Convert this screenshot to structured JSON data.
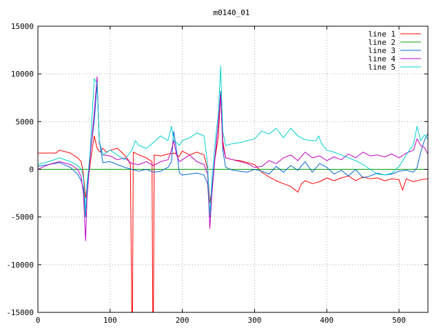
{
  "chart_data": {
    "type": "line",
    "title": "m0140_01",
    "xlabel": "",
    "ylabel": "",
    "xlim": [
      0,
      540
    ],
    "ylim": [
      -15000,
      15000
    ],
    "x_ticks": [
      0,
      100,
      200,
      300,
      400,
      500
    ],
    "y_ticks": [
      -15000,
      -10000,
      -5000,
      0,
      5000,
      10000,
      15000
    ],
    "grid": true,
    "legend_position": "top-right",
    "series": [
      {
        "name": "line 1",
        "color": "#ff0000",
        "x": [
          0,
          25,
          30,
          45,
          55,
          60,
          63,
          66,
          70,
          74,
          78,
          82,
          86,
          90,
          95,
          100,
          110,
          120,
          125,
          128,
          130,
          131,
          132,
          140,
          150,
          158,
          159,
          160,
          161,
          170,
          180,
          190,
          195,
          200,
          210,
          220,
          230,
          235,
          238,
          241,
          245,
          250,
          253,
          256,
          260,
          270,
          280,
          290,
          300,
          310,
          320,
          330,
          340,
          350,
          360,
          365,
          370,
          380,
          390,
          400,
          410,
          420,
          430,
          440,
          450,
          460,
          470,
          480,
          490,
          500,
          505,
          510,
          520,
          530,
          540
        ],
        "values": [
          1700,
          1700,
          2000,
          1700,
          1200,
          800,
          -500,
          -3000,
          -800,
          1500,
          3500,
          2200,
          1800,
          2200,
          1800,
          2000,
          2200,
          1500,
          1000,
          500,
          -15000,
          -15000,
          1800,
          1500,
          1200,
          800,
          -15000,
          -15000,
          1500,
          1400,
          1600,
          1700,
          1300,
          1900,
          1500,
          1800,
          1500,
          0,
          -3500,
          -2000,
          1000,
          3500,
          8000,
          3000,
          1200,
          1000,
          900,
          700,
          500,
          -300,
          -800,
          -1200,
          -1500,
          -1800,
          -2400,
          -1500,
          -1200,
          -1500,
          -1300,
          -900,
          -1200,
          -900,
          -700,
          -1200,
          -800,
          -1000,
          -900,
          -1200,
          -1000,
          -1100,
          -2200,
          -1000,
          -1300,
          -1100,
          -1000
        ]
      },
      {
        "name": "line 2",
        "color": "#00a000",
        "x": [
          0,
          540
        ],
        "values": [
          0,
          0
        ]
      },
      {
        "name": "line 3",
        "color": "#0066cc",
        "x": [
          0,
          15,
          30,
          45,
          55,
          60,
          63,
          66,
          68,
          72,
          78,
          82,
          85,
          90,
          100,
          110,
          120,
          130,
          140,
          150,
          160,
          170,
          180,
          185,
          188,
          192,
          196,
          200,
          210,
          220,
          230,
          235,
          238,
          241,
          245,
          250,
          253,
          256,
          260,
          270,
          280,
          290,
          300,
          310,
          320,
          330,
          340,
          350,
          360,
          370,
          380,
          390,
          400,
          410,
          420,
          430,
          440,
          450,
          460,
          470,
          480,
          490,
          500,
          510,
          520,
          525,
          530,
          535,
          540
        ],
        "values": [
          300,
          500,
          700,
          200,
          -500,
          -1200,
          -2000,
          -5000,
          -2000,
          1500,
          5000,
          9000,
          3000,
          700,
          800,
          500,
          200,
          0,
          -200,
          0,
          -300,
          -200,
          200,
          800,
          4000,
          2000,
          -400,
          -600,
          -500,
          -400,
          -600,
          -1500,
          -5000,
          -2000,
          1200,
          5000,
          8200,
          2000,
          200,
          -100,
          -200,
          -300,
          0,
          -200,
          -500,
          300,
          -300,
          400,
          -100,
          800,
          -300,
          600,
          200,
          -500,
          -100,
          -700,
          0,
          -900,
          -700,
          -400,
          -600,
          -500,
          -200,
          -100,
          -300,
          200,
          1800,
          3000,
          3800
        ]
      },
      {
        "name": "line 4",
        "color": "#c000c0",
        "x": [
          0,
          15,
          30,
          45,
          55,
          60,
          63,
          66,
          68,
          72,
          78,
          82,
          85,
          90,
          100,
          110,
          120,
          130,
          140,
          150,
          160,
          170,
          180,
          185,
          188,
          192,
          196,
          200,
          210,
          220,
          230,
          235,
          238,
          241,
          245,
          250,
          253,
          256,
          260,
          270,
          280,
          290,
          300,
          310,
          320,
          330,
          340,
          350,
          360,
          370,
          380,
          390,
          400,
          410,
          420,
          430,
          440,
          450,
          460,
          470,
          480,
          490,
          500,
          510,
          520,
          525,
          530,
          535,
          540
        ],
        "values": [
          0,
          500,
          800,
          500,
          0,
          -800,
          -2500,
          -7500,
          -3000,
          1000,
          6000,
          9700,
          2800,
          1500,
          1400,
          1000,
          1200,
          600,
          500,
          800,
          400,
          800,
          1000,
          2000,
          3000,
          1500,
          800,
          1000,
          1500,
          800,
          500,
          -500,
          -6200,
          -2500,
          1000,
          5000,
          7800,
          2500,
          1200,
          1000,
          800,
          600,
          200,
          300,
          900,
          600,
          1200,
          1500,
          900,
          1800,
          1200,
          1400,
          900,
          1300,
          1000,
          1600,
          1200,
          1800,
          1400,
          1500,
          1300,
          1600,
          1200,
          1700,
          2000,
          3200,
          2500,
          2300,
          1600
        ]
      },
      {
        "name": "line 5",
        "color": "#00d0d0",
        "x": [
          0,
          15,
          30,
          45,
          55,
          60,
          63,
          66,
          68,
          72,
          78,
          82,
          85,
          90,
          100,
          110,
          120,
          130,
          135,
          140,
          150,
          160,
          170,
          180,
          185,
          188,
          192,
          196,
          200,
          210,
          220,
          230,
          235,
          238,
          241,
          245,
          250,
          253,
          256,
          260,
          270,
          280,
          290,
          300,
          310,
          320,
          330,
          340,
          350,
          360,
          370,
          380,
          385,
          389,
          392,
          395,
          400,
          410,
          420,
          430,
          440,
          450,
          460,
          470,
          480,
          490,
          500,
          510,
          520,
          525,
          530,
          535,
          540
        ],
        "values": [
          500,
          800,
          1200,
          800,
          400,
          0,
          -800,
          -4500,
          -1500,
          1500,
          9500,
          9000,
          3000,
          1500,
          2000,
          1500,
          1000,
          2000,
          3000,
          2500,
          2200,
          2800,
          3500,
          3000,
          4500,
          3000,
          2800,
          2500,
          3000,
          3300,
          3800,
          3500,
          500,
          -4800,
          -1000,
          2500,
          6000,
          10800,
          4000,
          2500,
          2700,
          2800,
          3000,
          3200,
          4000,
          3700,
          4300,
          3300,
          4300,
          3500,
          3100,
          3000,
          3000,
          3500,
          2800,
          2500,
          2000,
          1800,
          1500,
          1200,
          900,
          500,
          0,
          -500,
          -600,
          -400,
          300,
          1500,
          2600,
          4500,
          3000,
          3600,
          3200
        ]
      }
    ]
  }
}
